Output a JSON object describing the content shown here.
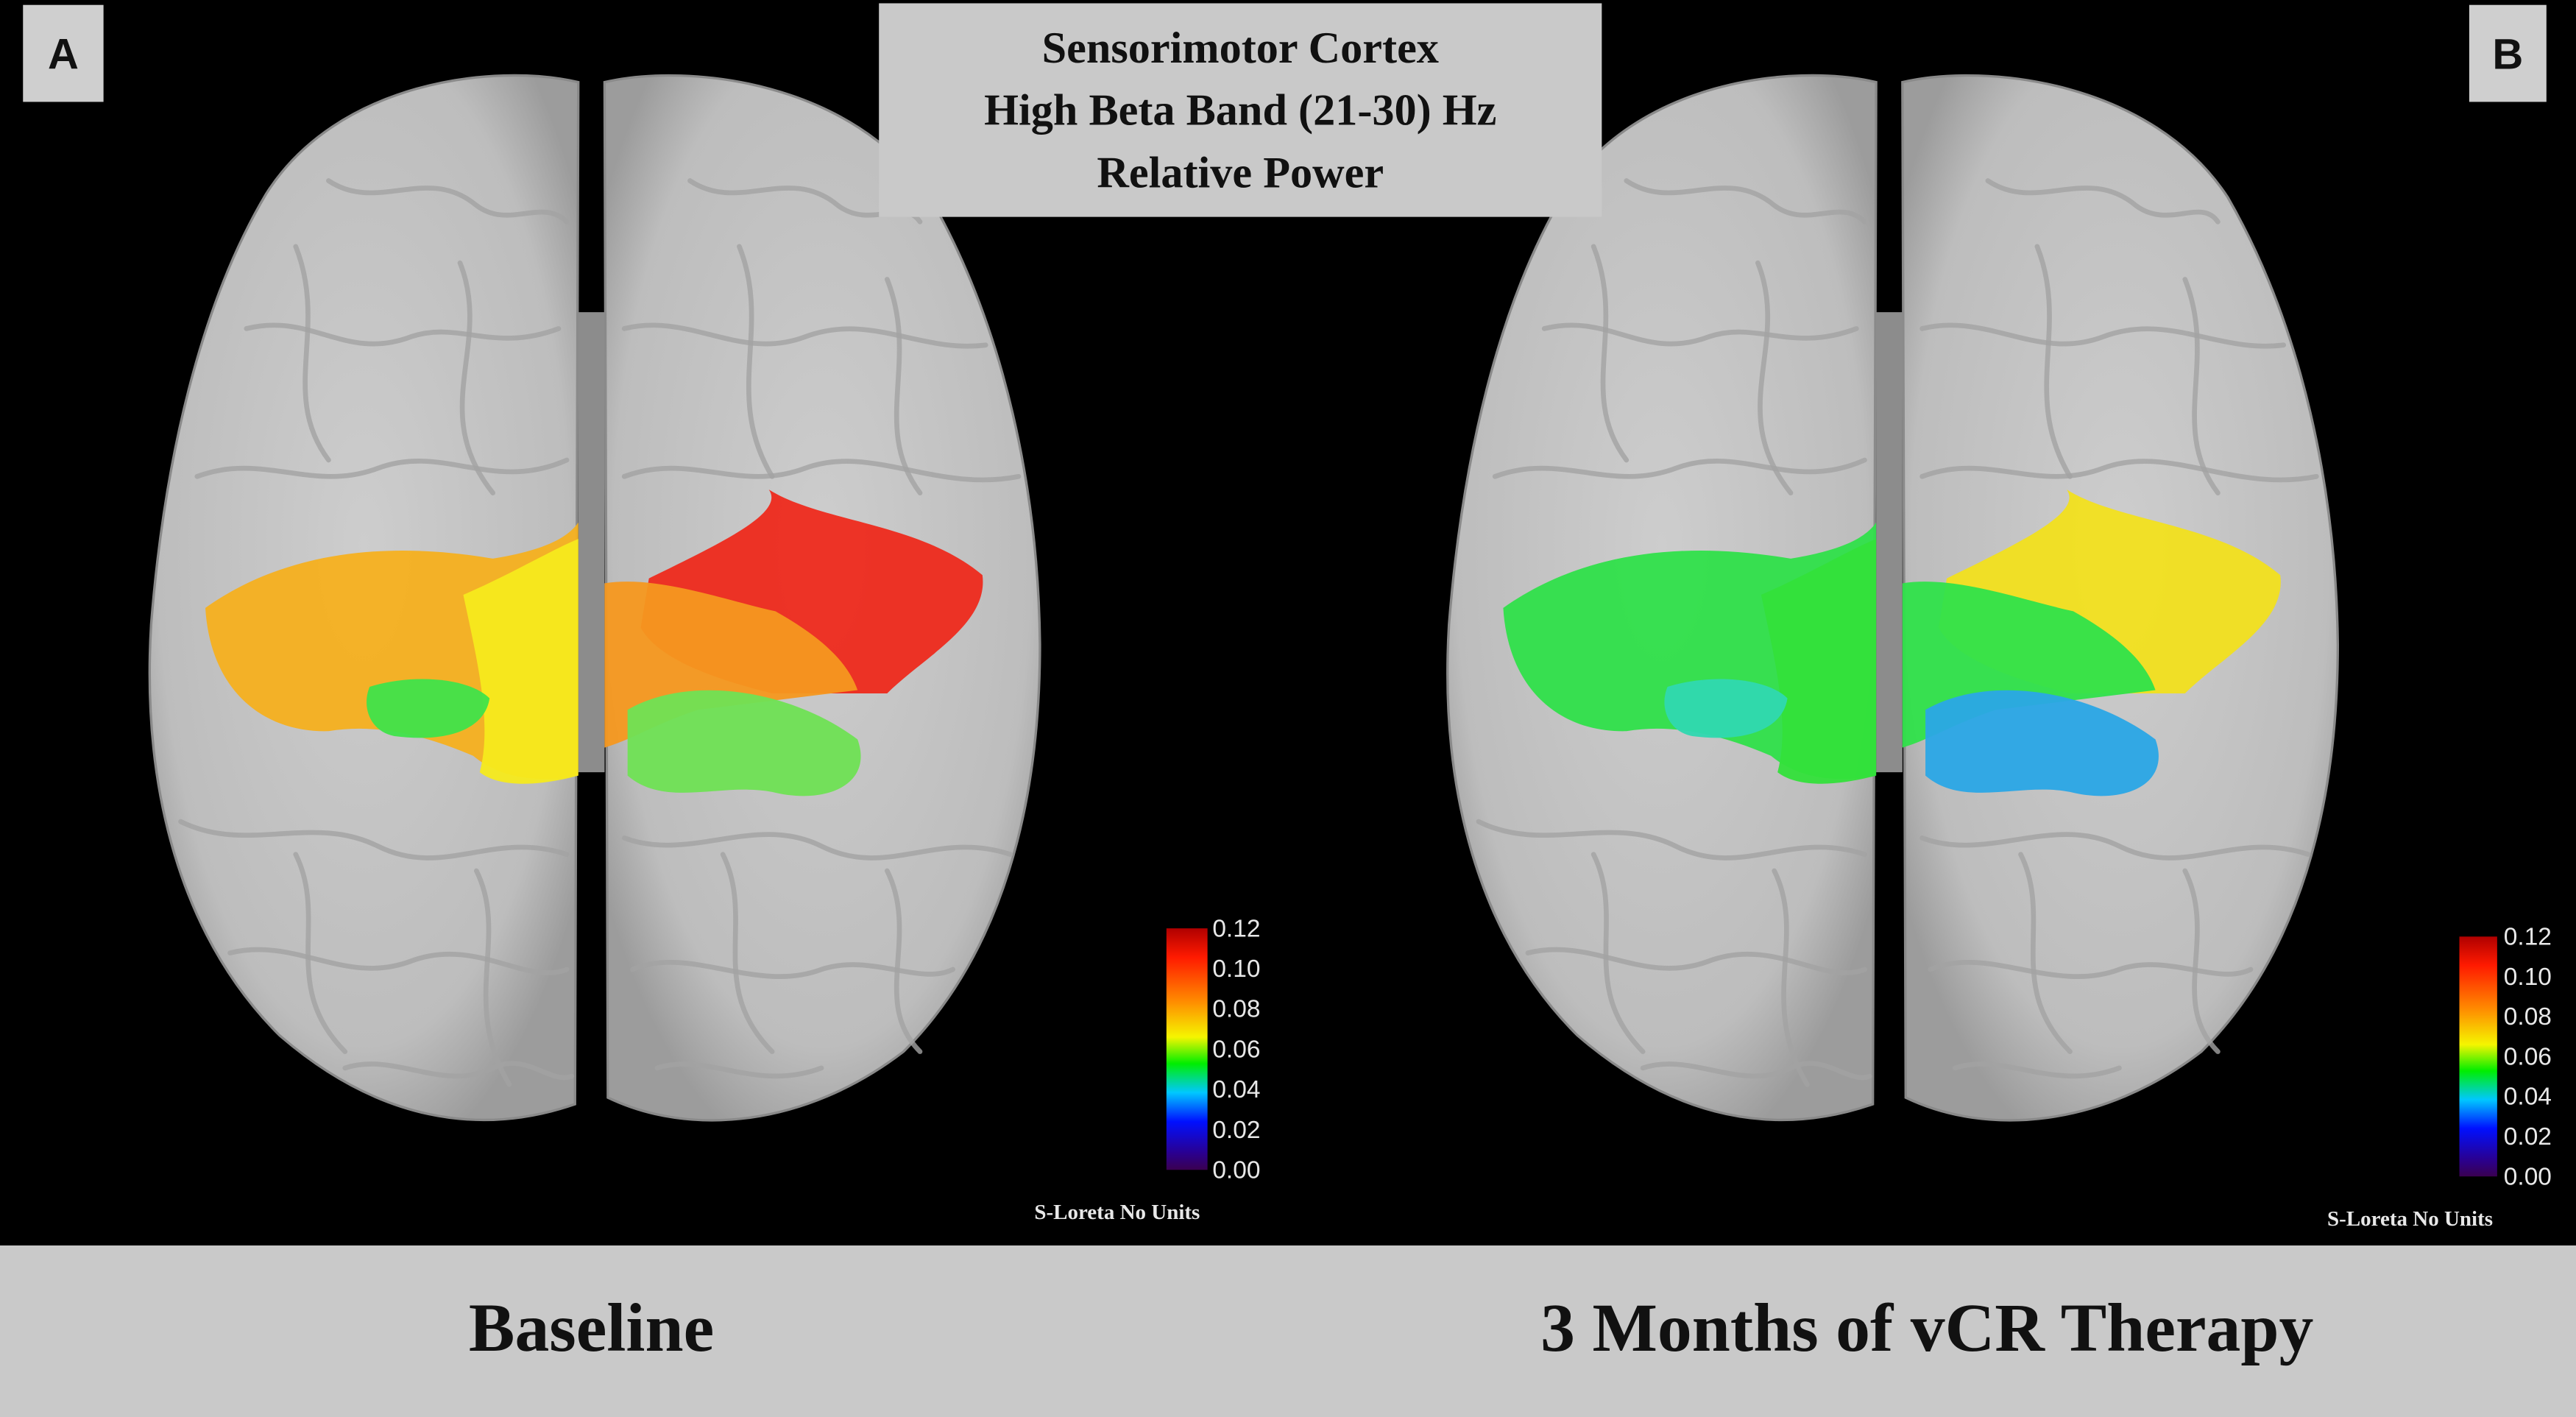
{
  "title": [
    "Sensorimotor Cortex",
    "High Beta Band (21-30) Hz",
    "Relative Power"
  ],
  "panels": [
    {
      "label": "A",
      "caption": "Baseline",
      "colorbar": {
        "ticks": [
          "0.12",
          "0.10",
          "0.08",
          "0.06",
          "0.04",
          "0.02",
          "0.00"
        ],
        "unit": "S-Loreta No Units"
      }
    },
    {
      "label": "B",
      "caption": "3 Months of vCR Therapy",
      "colorbar": {
        "ticks": [
          "0.12",
          "0.10",
          "0.08",
          "0.06",
          "0.04",
          "0.02",
          "0.00"
        ],
        "unit": "S-Loreta No Units"
      }
    }
  ]
}
